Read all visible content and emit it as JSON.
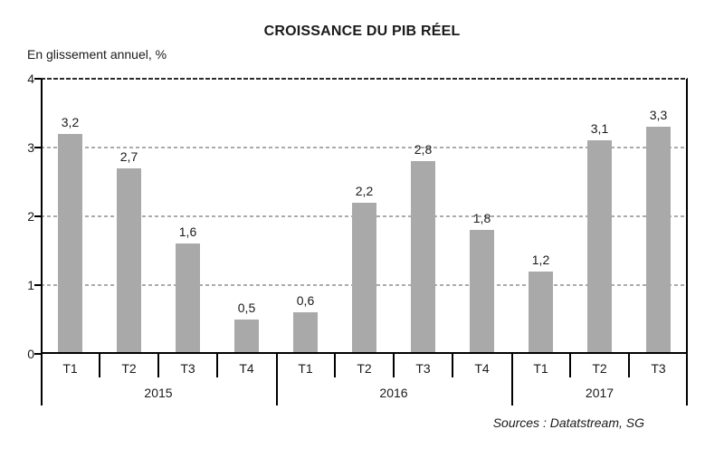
{
  "title": "CROISSANCE DU PIB RÉEL",
  "subtitle": "En glissement annuel, %",
  "source": "Sources : Datatstream, SG",
  "chart_data": {
    "type": "bar",
    "title": "CROISSANCE DU PIB RÉEL",
    "ylabel": "En glissement annuel, %",
    "xlabel": "",
    "ylim": [
      0,
      4
    ],
    "y_ticks": [
      0,
      1,
      2,
      3,
      4
    ],
    "grid": "horizontal-dashed",
    "legend": "none",
    "categories": [
      "T1",
      "T2",
      "T3",
      "T4",
      "T1",
      "T2",
      "T3",
      "T4",
      "T1",
      "T2",
      "T3"
    ],
    "year_groups": [
      {
        "label": "2015",
        "start": 0,
        "span": 4
      },
      {
        "label": "2016",
        "start": 4,
        "span": 4
      },
      {
        "label": "2017",
        "start": 8,
        "span": 3
      }
    ],
    "values": [
      3.2,
      2.7,
      1.6,
      0.5,
      0.6,
      2.2,
      2.8,
      1.8,
      1.2,
      3.1,
      3.3
    ],
    "value_labels": [
      "3,2",
      "2,7",
      "1,6",
      "0,5",
      "0,6",
      "2,2",
      "2,8",
      "1,8",
      "1,2",
      "3,1",
      "3,3"
    ]
  },
  "colors": {
    "bar": "#a9a9a9",
    "grid_minor": "#ababab",
    "grid_top": "#2b2b2b",
    "axis": "#000000",
    "text": "#1a1a1a"
  }
}
